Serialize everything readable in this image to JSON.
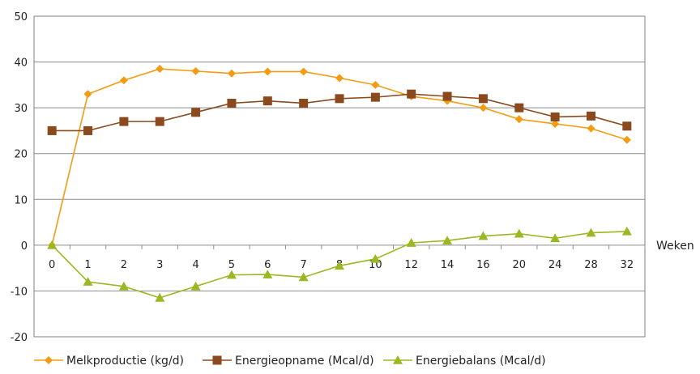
{
  "chart_data": {
    "type": "line",
    "title": "",
    "xlabel": "Weken",
    "ylabel": "",
    "categories": [
      "0",
      "1",
      "2",
      "3",
      "4",
      "5",
      "6",
      "7",
      "8",
      "10",
      "12",
      "14",
      "16",
      "20",
      "24",
      "28",
      "32"
    ],
    "ylim": [
      -20,
      50
    ],
    "yticks": [
      -20,
      -10,
      0,
      10,
      20,
      30,
      40,
      50
    ],
    "grid": "horizontal",
    "legend_position": "bottom",
    "series": [
      {
        "name": "Melkproductie (kg/d)",
        "color": "#F39C12",
        "marker": "diamond",
        "values": [
          0,
          33,
          36,
          38.5,
          38,
          37.5,
          37.9,
          37.9,
          36.5,
          35,
          32.5,
          31.5,
          30,
          27.5,
          26.5,
          25.5,
          23
        ]
      },
      {
        "name": "Energieopname (Mcal/d)",
        "color": "#8B4A1E",
        "marker": "square",
        "values": [
          25,
          25,
          27,
          27,
          29,
          31,
          31.5,
          31,
          32,
          32.3,
          33,
          32.5,
          32,
          30,
          28,
          28.2,
          26
        ]
      },
      {
        "name": "Energiebalans (Mcal/d)",
        "color": "#9AB822",
        "marker": "triangle",
        "values": [
          0,
          -8,
          -9,
          -11.5,
          -9,
          -6.5,
          -6.4,
          -7,
          -4.5,
          -3,
          0.5,
          1,
          2,
          2.5,
          1.5,
          2.7,
          3
        ]
      }
    ]
  }
}
